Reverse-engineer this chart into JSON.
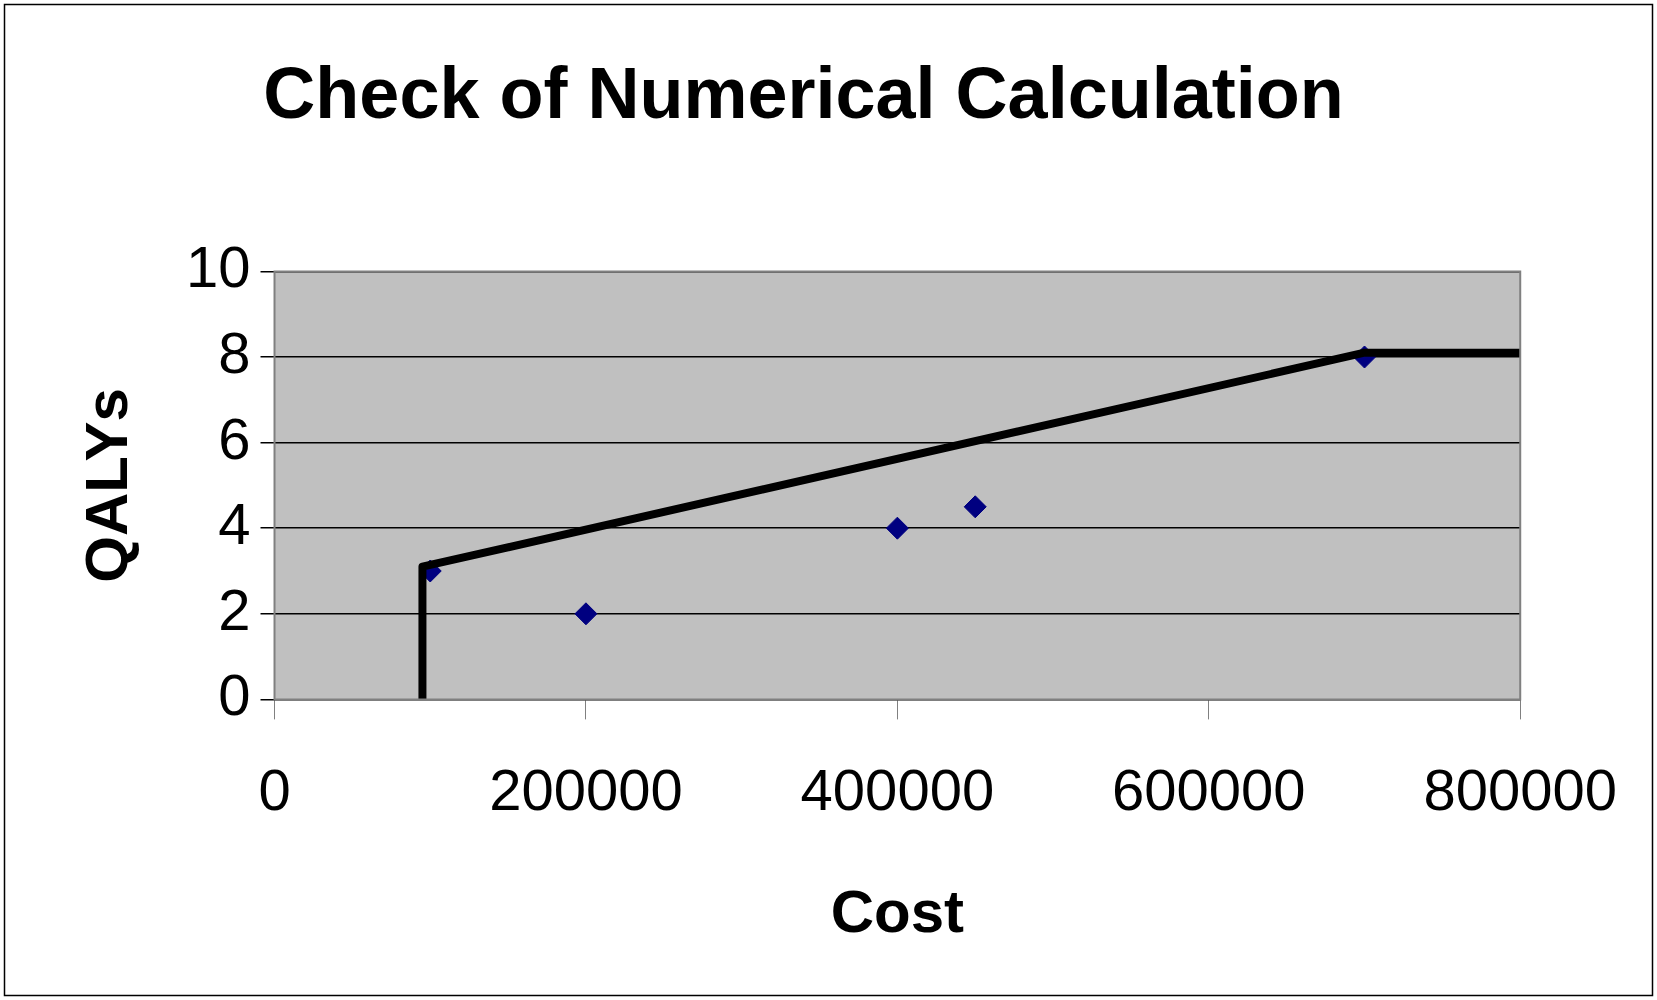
{
  "chart_data": {
    "type": "scatter",
    "title": "Check of Numerical Calculation",
    "xlabel": "Cost",
    "ylabel": "QALYs",
    "xlim": [
      0,
      800000
    ],
    "xticks": [
      0,
      200000,
      400000,
      600000,
      800000
    ],
    "ylim": [
      0,
      10
    ],
    "yticks": [
      0,
      2,
      4,
      6,
      8,
      10
    ],
    "grid": "y",
    "legend": false,
    "series": [
      {
        "color": "#000080",
        "marker": "diamond",
        "x": [
          100000,
          200000,
          400000,
          450000,
          700000
        ],
        "values": [
          3,
          2,
          4,
          4.5,
          8
        ]
      },
      {
        "type": "line",
        "color": "#000000",
        "marker": "none",
        "line_style": "solid",
        "x": [
          95000,
          95000,
          700000,
          800000
        ],
        "values": [
          0,
          3.1,
          8.1,
          8.1
        ]
      }
    ]
  }
}
